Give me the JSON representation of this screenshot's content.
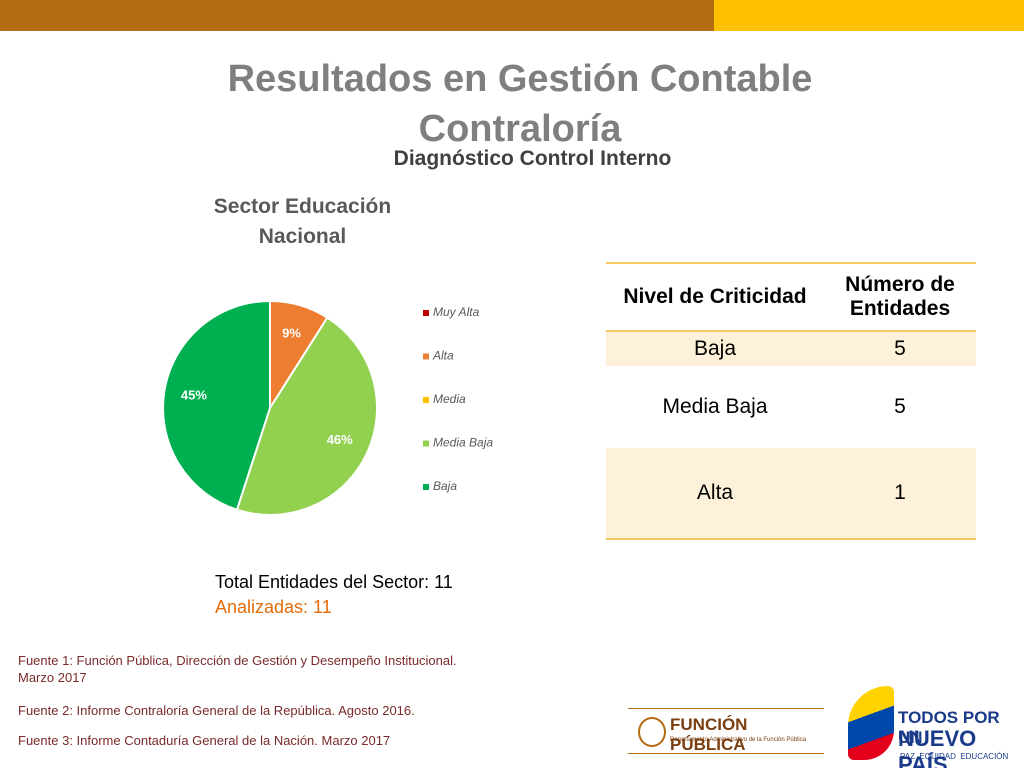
{
  "header": {
    "title": "Resultados en Gestión Contable Contraloría",
    "subtitle": "Diagnóstico Control Interno"
  },
  "chart_data": {
    "type": "pie",
    "title": "Sector Educación Nacional",
    "categories": [
      "Muy Alta",
      "Alta",
      "Media",
      "Media Baja",
      "Baja"
    ],
    "values": [
      0,
      9,
      0,
      46,
      45
    ],
    "value_labels": [
      null,
      "9%",
      null,
      "46%",
      "45%"
    ],
    "colors": [
      "#c00000",
      "#ed7d31",
      "#ffc000",
      "#92d050",
      "#00b050"
    ],
    "legend": "right"
  },
  "table": {
    "header": [
      "Nivel de Criticidad",
      "Número de Entidades"
    ],
    "rows": [
      [
        "Baja",
        5
      ],
      [
        "Media Baja",
        5
      ],
      [
        "Alta",
        1
      ]
    ]
  },
  "summary": {
    "total": "Total Entidades del Sector: 11",
    "analyzed": "Analizadas: 11"
  },
  "sources": [
    "Fuente 1: Función Pública, Dirección de Gestión y Desempeño Institucional. Marzo 2017",
    "Fuente 2: Informe Contraloría General de la República. Agosto 2016.",
    "Fuente 3: Informe Contaduría General de la Nación. Marzo 2017"
  ],
  "logos": {
    "fp_name": "FUNCIÓN PÚBLICA",
    "fp_sub": "Departamento Administrativo de la Función Pública",
    "gov_line1": "TODOS POR UN",
    "gov_line2": "NUEVO PAÍS",
    "gov_motto": "PAZ  EQUIDAD  EDUCACIÓN"
  }
}
